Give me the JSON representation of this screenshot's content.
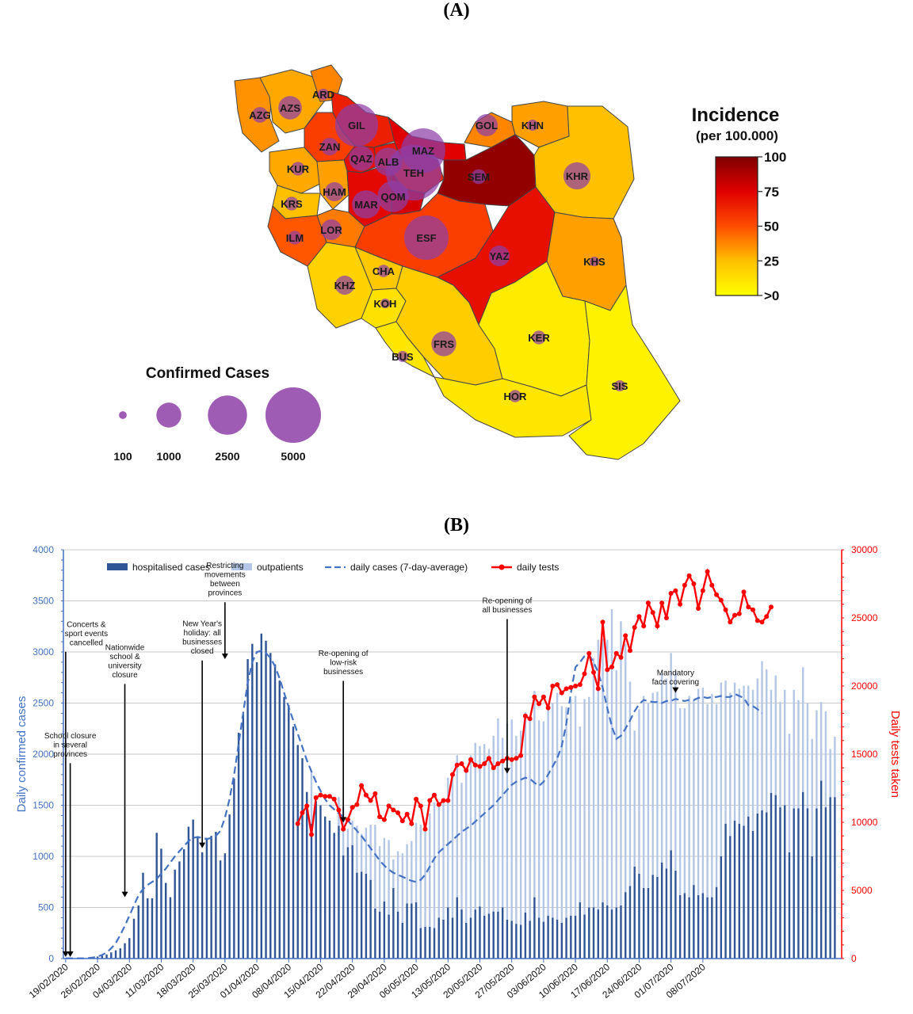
{
  "panel_a": {
    "label": "(A)",
    "legend_incidence_title": "Incidence",
    "legend_incidence_subtitle": "(per 100.000)",
    "legend_incidence_ticks": [
      "100",
      "75",
      "50",
      "25",
      ">0"
    ],
    "legend_cases_title": "Confirmed Cases",
    "legend_cases_sizes": [
      "100",
      "1000",
      "2500",
      "5000"
    ],
    "colors": {
      "incidence_high": "#8b0000",
      "incidence_mid": "#ff2a00",
      "incidence_low": "#ffee00",
      "bubble": "#8e3fa8"
    },
    "provinces": [
      {
        "code": "AZG",
        "incidence": 35,
        "cases": 400
      },
      {
        "code": "AZS",
        "incidence": 30,
        "cases": 900
      },
      {
        "code": "ARD",
        "incidence": 38,
        "cases": 200
      },
      {
        "code": "GIL",
        "incidence": 65,
        "cases": 3000
      },
      {
        "code": "ZAN",
        "incidence": 55,
        "cases": 500
      },
      {
        "code": "QAZ",
        "incidence": 70,
        "cases": 1000
      },
      {
        "code": "ALB",
        "incidence": 68,
        "cases": 1300
      },
      {
        "code": "TEH",
        "incidence": 62,
        "cases": 5000
      },
      {
        "code": "MAZ",
        "incidence": 75,
        "cases": 3200
      },
      {
        "code": "GOL",
        "incidence": 38,
        "cases": 800
      },
      {
        "code": "KHN",
        "incidence": 32,
        "cases": 200
      },
      {
        "code": "SEM",
        "incidence": 95,
        "cases": 350
      },
      {
        "code": "KHR",
        "incidence": 25,
        "cases": 1200
      },
      {
        "code": "KUR",
        "incidence": 30,
        "cases": 300
      },
      {
        "code": "HAM",
        "incidence": 32,
        "cases": 600
      },
      {
        "code": "KRS",
        "incidence": 25,
        "cases": 300
      },
      {
        "code": "MAR",
        "incidence": 72,
        "cases": 1300
      },
      {
        "code": "QOM",
        "incidence": 78,
        "cases": 1600
      },
      {
        "code": "LOR",
        "incidence": 40,
        "cases": 700
      },
      {
        "code": "ILM",
        "incidence": 48,
        "cases": 300
      },
      {
        "code": "ESF",
        "incidence": 55,
        "cases": 3200
      },
      {
        "code": "YAZ",
        "incidence": 70,
        "cases": 700
      },
      {
        "code": "KHS",
        "incidence": 32,
        "cases": 150
      },
      {
        "code": "CHA",
        "incidence": 22,
        "cases": 250
      },
      {
        "code": "KHZ",
        "incidence": 18,
        "cases": 600
      },
      {
        "code": "KOH",
        "incidence": 12,
        "cases": 150
      },
      {
        "code": "BUS",
        "incidence": 10,
        "cases": 200
      },
      {
        "code": "FRS",
        "incidence": 20,
        "cases": 1000
      },
      {
        "code": "KER",
        "incidence": 8,
        "cases": 300
      },
      {
        "code": "HOR",
        "incidence": 10,
        "cases": 250
      },
      {
        "code": "SIS",
        "incidence": 5,
        "cases": 200
      }
    ]
  },
  "panel_b": {
    "label": "(B)"
  },
  "chart_data": {
    "type": "bar",
    "title": "",
    "xlabel": "",
    "ylabel": "Daily confirmed cases",
    "y2label": "Daily tests taken",
    "ylim": [
      0,
      4000
    ],
    "y2lim": [
      0,
      30000
    ],
    "yticks": [
      "0",
      "500",
      "1000",
      "1500",
      "2000",
      "2500",
      "3000",
      "3500",
      "4000"
    ],
    "y2ticks": [
      "0",
      "5000",
      "10000",
      "15000",
      "20000",
      "25000",
      "30000"
    ],
    "xticks": [
      "19/02/2020",
      "26/02/2020",
      "04/03/2020",
      "11/03/2020",
      "18/03/2020",
      "25/03/2020",
      "01/04/2020",
      "08/04/2020",
      "15/04/2020",
      "22/04/2020",
      "29/04/2020",
      "06/05/2020",
      "13/05/2020",
      "20/05/2020",
      "27/05/2020",
      "03/06/2020",
      "10/06/2020",
      "17/06/2020",
      "24/06/2020",
      "01/07/2020",
      "08/07/2020"
    ],
    "x_start": "19/02/2020",
    "legend_position": "top",
    "grid": true,
    "legend": [
      "hospitalised cases",
      "outpatients",
      "daily cases (7-day-average)",
      "daily tests"
    ],
    "colors": {
      "hospitalised": "#2f5597",
      "outpatients": "#b4c7e7",
      "average": "#4472c4",
      "tests": "#ff0000"
    },
    "series": [
      {
        "name": "hospitalised cases",
        "values": [
          2,
          0,
          0,
          0,
          0,
          5,
          10,
          20,
          28,
          40,
          60,
          80,
          100,
          150,
          200,
          390,
          520,
          840,
          590,
          590,
          1230,
          1075,
          740,
          600,
          870,
          950,
          1070,
          1290,
          1360,
          1190,
          1040,
          1180,
          1200,
          1240,
          960,
          1030,
          1410,
          1760,
          2210,
          2390,
          2930,
          3080,
          2900,
          3180,
          3110,
          2990,
          2880,
          2720,
          2560,
          2480,
          2270,
          2090,
          1960,
          1630,
          1320,
          1540,
          1500,
          1390,
          1350,
          1230,
          1300,
          1010,
          1090,
          1110,
          840,
          850,
          830,
          770,
          490,
          460,
          560,
          430,
          690,
          460,
          350,
          540,
          540,
          550,
          300,
          310,
          310,
          300,
          400,
          380,
          500,
          400,
          600,
          480,
          350,
          400,
          480,
          510,
          420,
          440,
          460,
          460,
          500,
          380,
          370,
          340,
          330,
          450,
          370,
          600,
          400,
          360,
          420,
          400,
          380,
          350,
          400,
          420,
          420,
          550,
          430,
          500,
          500,
          480,
          550,
          520,
          480,
          500,
          520,
          650,
          710,
          900,
          830,
          690,
          690,
          820,
          800,
          940,
          880,
          1060,
          860,
          620,
          640,
          600,
          720,
          620,
          640,
          600,
          600,
          700,
          1000,
          1320,
          1200,
          1350,
          1320,
          1300,
          1390,
          1250,
          1420,
          1450,
          1430,
          1620,
          1600,
          1480,
          1500,
          1040,
          1470,
          1470,
          1630,
          1470,
          1000,
          1470,
          1740,
          1480,
          1580,
          1580
        ]
      },
      {
        "name": "outpatients",
        "values": [
          0,
          0,
          0,
          0,
          0,
          0,
          0,
          0,
          0,
          0,
          0,
          0,
          0,
          0,
          0,
          0,
          0,
          0,
          0,
          0,
          0,
          0,
          0,
          0,
          0,
          0,
          0,
          0,
          0,
          0,
          0,
          0,
          0,
          0,
          0,
          0,
          0,
          0,
          0,
          0,
          0,
          0,
          0,
          0,
          0,
          0,
          0,
          0,
          0,
          0,
          0,
          0,
          0,
          0,
          510,
          0,
          0,
          0,
          0,
          0,
          280,
          470,
          180,
          240,
          460,
          370,
          450,
          540,
          820,
          640,
          620,
          730,
          280,
          590,
          680,
          580,
          610,
          780,
          1010,
          1000,
          1110,
          1230,
          1130,
          1150,
          1270,
          1410,
          1390,
          1240,
          1500,
          1590,
          1630,
          1570,
          1680,
          1610,
          1720,
          1890,
          1660,
          1920,
          1970,
          1840,
          1900,
          1960,
          1980,
          2020,
          1930,
          1960,
          2070,
          2100,
          2220,
          2120,
          2060,
          2120,
          2150,
          1720,
          2110,
          2060,
          2440,
          2640,
          2580,
          2600,
          2940,
          2320,
          2780,
          2430,
          2000,
          1330,
          1610,
          1880,
          1810,
          1780,
          1810,
          1850,
          1860,
          1930,
          1950,
          1830,
          1810,
          1970,
          1810,
          2020,
          2010,
          1890,
          1990,
          1790,
          1700,
          1400,
          1400,
          1350,
          1320,
          1370,
          1280,
          1380,
          1320,
          1460,
          1400,
          1010,
          1170,
          1030,
          1130,
          1160,
          1160,
          1060,
          1220,
          1030,
          1150,
          960,
          770,
          940,
          470,
          590
        ]
      },
      {
        "name": "daily cases (7-day-average)",
        "values": [
          2,
          2,
          2,
          2,
          2,
          5,
          10,
          20,
          35,
          60,
          100,
          150,
          230,
          320,
          420,
          520,
          620,
          680,
          720,
          750,
          780,
          830,
          880,
          940,
          1000,
          1050,
          1100,
          1150,
          1180,
          1190,
          1180,
          1170,
          1180,
          1200,
          1250,
          1380,
          1560,
          1800,
          2100,
          2400,
          2700,
          2900,
          3000,
          3010,
          2990,
          2940,
          2860,
          2740,
          2600,
          2460,
          2330,
          2200,
          2070,
          1940,
          1830,
          1730,
          1640,
          1560,
          1500,
          1460,
          1420,
          1390,
          1350,
          1300,
          1250,
          1200,
          1140,
          1080,
          1020,
          960,
          910,
          870,
          840,
          820,
          800,
          780,
          760,
          750,
          770,
          820,
          900,
          980,
          1040,
          1080,
          1120,
          1160,
          1200,
          1240,
          1270,
          1300,
          1340,
          1380,
          1420,
          1460,
          1500,
          1550,
          1600,
          1650,
          1700,
          1730,
          1750,
          1770,
          1760,
          1720,
          1690,
          1730,
          1800,
          1880,
          1960,
          2080,
          2300,
          2600,
          2850,
          2900,
          2960,
          2970,
          2900,
          2800,
          2650,
          2450,
          2270,
          2150,
          2180,
          2250,
          2330,
          2420,
          2490,
          2530,
          2520,
          2510,
          2510,
          2500,
          2520,
          2520,
          2540,
          2530,
          2520,
          2530,
          2530,
          2550,
          2560,
          2550,
          2560,
          2560,
          2570,
          2560,
          2560,
          2590,
          2570,
          2550,
          2480,
          2470,
          2440,
          2400
        ]
      },
      {
        "name": "daily tests",
        "values": [
          9900,
          10700,
          11200,
          9100,
          11800,
          12000,
          11900,
          11900,
          11700,
          10900,
          9500,
          10200,
          11100,
          11300,
          12700,
          12000,
          11600,
          12100,
          10400,
          10200,
          11200,
          10900,
          10700,
          10100,
          10600,
          9900,
          11700,
          11200,
          9500,
          11600,
          12000,
          11300,
          11600,
          11600,
          13500,
          14200,
          14300,
          13800,
          14600,
          14200,
          14100,
          14300,
          14700,
          14000,
          14300,
          14500,
          14700,
          14600,
          14700,
          14900,
          17800,
          17600,
          19200,
          18700,
          19200,
          18400,
          20000,
          20100,
          19500,
          19800,
          19900,
          20000,
          20100,
          20900,
          22400,
          21000,
          19800,
          24700,
          21200,
          21400,
          22400,
          22100,
          23700,
          22600,
          24300,
          25100,
          24400,
          26100,
          25400,
          24400,
          26100,
          25000,
          26800,
          27000,
          26000,
          27400,
          28100,
          27500,
          25700,
          27000,
          28400,
          27400,
          26700,
          26300,
          25600,
          24700,
          25200,
          25300,
          26900,
          25800,
          25600,
          24800,
          24700,
          25100,
          25800
        ]
      }
    ],
    "tests_start": "10/04/2020",
    "annotations": [
      {
        "text": [
          "Concerts &",
          "sport events",
          "cancelled"
        ],
        "date": "19/02/2020",
        "y_top": 3025
      },
      {
        "text": [
          "School closure",
          "in several",
          "provinces"
        ],
        "date": "20/02/2020",
        "y_top": 1935
      },
      {
        "text": [
          "Nationwide",
          "school &",
          "university",
          "closure"
        ],
        "date": "03/03/2020",
        "y_top": 2710
      },
      {
        "text": [
          "New Year's",
          "holiday: all",
          "businesses",
          "closed"
        ],
        "date": "20/03/2020",
        "y_top": 2940
      },
      {
        "text": [
          "Restricting",
          "movements",
          "between",
          "provinces"
        ],
        "date": "25/03/2020",
        "y_top": 3510
      },
      {
        "text": [
          "Re-opening of",
          "low-risk",
          "businesses"
        ],
        "date": "20/04/2020",
        "y_top": 2740
      },
      {
        "text": [
          "Re-opening of",
          "all businesses"
        ],
        "date": "26/05/2020",
        "y_top": 3345
      },
      {
        "text": [
          "Mandatory",
          "face covering"
        ],
        "date": "02/07/2020",
        "y_top": 2640
      }
    ]
  }
}
